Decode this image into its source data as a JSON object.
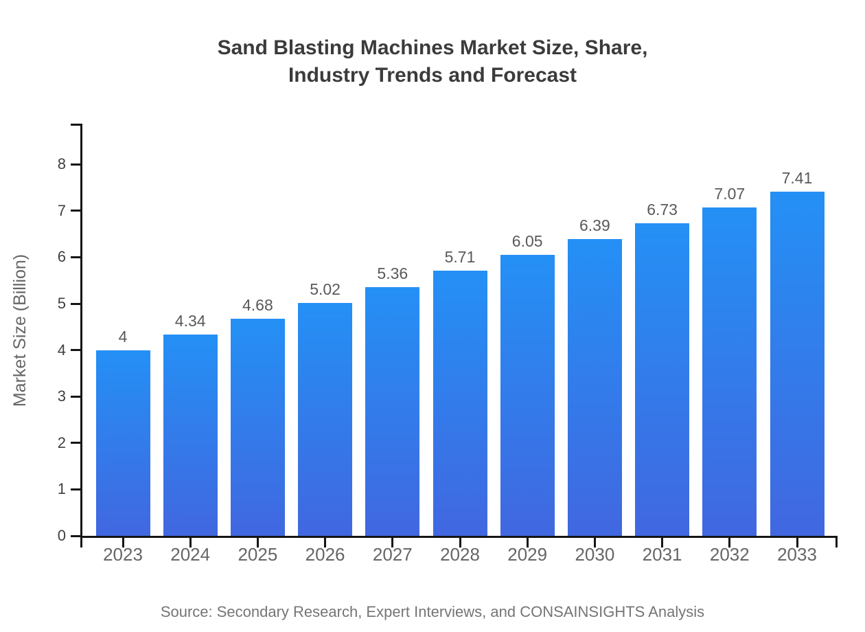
{
  "title": "Sand Blasting Machines Market Size, Share,\nIndustry Trends and Forecast",
  "source": "Source: Secondary Research, Expert Interviews, and CONSAINSIGHTS Analysis",
  "chart_data": {
    "type": "bar",
    "title": "Sand Blasting Machines Market Size, Share, Industry Trends and Forecast",
    "categories": [
      "2023",
      "2024",
      "2025",
      "2026",
      "2027",
      "2028",
      "2029",
      "2030",
      "2031",
      "2032",
      "2033"
    ],
    "values": [
      4,
      4.34,
      4.68,
      5.02,
      5.36,
      5.71,
      6.05,
      6.39,
      6.73,
      7.07,
      7.41
    ],
    "value_labels": [
      "4",
      "4.34",
      "4.68",
      "5.02",
      "5.36",
      "5.71",
      "6.05",
      "6.39",
      "6.73",
      "7.07",
      "7.41"
    ],
    "xlabel": "",
    "ylabel": "Market Size (Billion)",
    "ylim": [
      0,
      8.88
    ],
    "yticks": [
      0,
      1,
      2,
      3,
      4,
      5,
      6,
      7,
      8
    ],
    "grid": false,
    "legend": "none",
    "bar_color_top": "#2490f5",
    "bar_color_bottom": "#4167e0",
    "axis_color": "#151515"
  }
}
